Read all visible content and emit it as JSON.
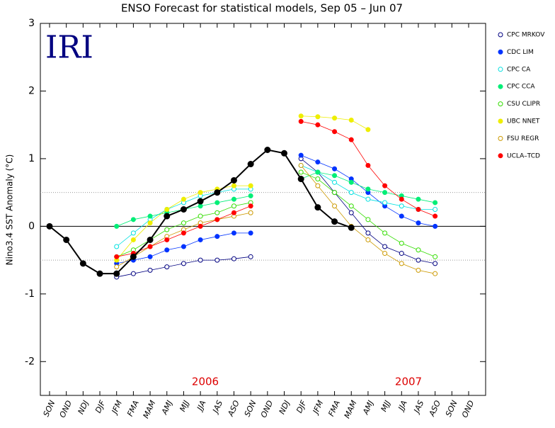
{
  "chart_data": {
    "type": "line",
    "title": "ENSO Forecast for statistical models, Sep 05 – Jun 07",
    "ylabel": "Nino3.4 SST Anomaly (°C)",
    "logo": "IRI",
    "annotations": [
      "2006",
      "2007"
    ],
    "categories": [
      "SON",
      "OND",
      "NDJ",
      "DJF",
      "JFM",
      "FMA",
      "MAM",
      "AMJ",
      "MJJ",
      "JJA",
      "JAS",
      "ASO",
      "SON",
      "OND",
      "NDJ",
      "DJF",
      "JFM",
      "FMA",
      "MAM",
      "AMJ",
      "MJJ",
      "JJA",
      "JAS",
      "ASO",
      "SON",
      "OND"
    ],
    "ylim": [
      -2.5,
      3
    ],
    "yticks": [
      -2,
      -1,
      0,
      1,
      2,
      3
    ],
    "reference_lines": [
      -0.5,
      0.5
    ],
    "observed": {
      "color": "#000000",
      "values": [
        0,
        -0.2,
        -0.55,
        -0.7,
        -0.7,
        -0.45,
        -0.2,
        0.15,
        0.25,
        0.37,
        0.5,
        0.68,
        0.92,
        1.13,
        1.08,
        0.7,
        0.28,
        0.07,
        -0.02,
        null,
        null,
        null,
        null,
        null,
        null,
        null
      ]
    },
    "series": [
      {
        "name": "CPC MRKOV",
        "color": "#000080",
        "filled": false,
        "runs": [
          [
            null,
            null,
            null,
            null,
            -0.75,
            -0.7,
            -0.65,
            -0.6,
            -0.55,
            -0.5,
            -0.5,
            -0.48,
            -0.45,
            null,
            null,
            null,
            null,
            null,
            null,
            null,
            null,
            null,
            null,
            null,
            null,
            null
          ],
          [
            null,
            null,
            null,
            null,
            null,
            null,
            null,
            null,
            null,
            null,
            null,
            null,
            null,
            null,
            null,
            1.0,
            0.8,
            0.5,
            0.2,
            -0.1,
            -0.3,
            -0.4,
            -0.5,
            -0.55,
            null,
            null
          ]
        ]
      },
      {
        "name": "CDC LIM",
        "color": "#0033ff",
        "filled": true,
        "runs": [
          [
            null,
            null,
            null,
            null,
            -0.55,
            -0.5,
            -0.45,
            -0.35,
            -0.3,
            -0.2,
            -0.15,
            -0.1,
            -0.1,
            null,
            null,
            null,
            null,
            null,
            null,
            null,
            null,
            null,
            null,
            null,
            null,
            null
          ],
          [
            null,
            null,
            null,
            null,
            null,
            null,
            null,
            null,
            null,
            null,
            null,
            null,
            null,
            null,
            null,
            1.05,
            0.95,
            0.85,
            0.7,
            0.5,
            0.3,
            0.15,
            0.05,
            0,
            null,
            null
          ]
        ]
      },
      {
        "name": "CPC CA",
        "color": "#00e0e0",
        "filled": false,
        "runs": [
          [
            null,
            null,
            null,
            null,
            -0.3,
            -0.1,
            0.1,
            0.25,
            0.35,
            0.45,
            0.5,
            0.55,
            0.55,
            null,
            null,
            null,
            null,
            null,
            null,
            null,
            null,
            null,
            null,
            null,
            null,
            null
          ],
          [
            null,
            null,
            null,
            null,
            null,
            null,
            null,
            null,
            null,
            null,
            null,
            null,
            null,
            null,
            null,
            0.9,
            0.8,
            0.65,
            0.5,
            0.4,
            0.35,
            0.3,
            0.25,
            0.25,
            null,
            null
          ]
        ]
      },
      {
        "name": "CPC CCA",
        "color": "#00ee77",
        "filled": true,
        "runs": [
          [
            null,
            null,
            null,
            null,
            0,
            0.1,
            0.15,
            0.2,
            0.25,
            0.3,
            0.35,
            0.4,
            0.45,
            null,
            null,
            null,
            null,
            null,
            null,
            null,
            null,
            null,
            null,
            null,
            null,
            null
          ],
          [
            null,
            null,
            null,
            null,
            null,
            null,
            null,
            null,
            null,
            null,
            null,
            null,
            null,
            null,
            null,
            0.7,
            0.8,
            0.75,
            0.65,
            0.55,
            0.5,
            0.45,
            0.4,
            0.35,
            null,
            null
          ]
        ]
      },
      {
        "name": "CSU CLIPR",
        "color": "#33dd00",
        "filled": false,
        "runs": [
          [
            null,
            null,
            null,
            null,
            -0.45,
            -0.35,
            -0.2,
            -0.05,
            0.05,
            0.15,
            0.2,
            0.3,
            0.35,
            null,
            null,
            null,
            null,
            null,
            null,
            null,
            null,
            null,
            null,
            null,
            null,
            null
          ],
          [
            null,
            null,
            null,
            null,
            null,
            null,
            null,
            null,
            null,
            null,
            null,
            null,
            null,
            null,
            null,
            0.8,
            0.7,
            0.5,
            0.3,
            0.1,
            -0.1,
            -0.25,
            -0.35,
            -0.45,
            null,
            null
          ]
        ]
      },
      {
        "name": "UBC NNET",
        "color": "#eeee00",
        "filled": true,
        "runs": [
          [
            null,
            null,
            null,
            null,
            -0.5,
            -0.2,
            0.05,
            0.25,
            0.4,
            0.5,
            0.55,
            0.6,
            0.6,
            null,
            null,
            null,
            null,
            null,
            null,
            null,
            null,
            null,
            null,
            null,
            null,
            null
          ],
          [
            null,
            null,
            null,
            null,
            null,
            null,
            null,
            null,
            null,
            null,
            null,
            null,
            null,
            null,
            null,
            1.63,
            1.62,
            1.6,
            1.57,
            1.43,
            null,
            null,
            null,
            null,
            null,
            null
          ]
        ]
      },
      {
        "name": "FSU REGR",
        "color": "#cc9900",
        "filled": false,
        "runs": [
          [
            null,
            null,
            null,
            null,
            -0.6,
            -0.45,
            -0.3,
            -0.15,
            -0.05,
            0.05,
            0.1,
            0.15,
            0.2,
            null,
            null,
            null,
            null,
            null,
            null,
            null,
            null,
            null,
            null,
            null,
            null,
            null
          ],
          [
            null,
            null,
            null,
            null,
            null,
            null,
            null,
            null,
            null,
            null,
            null,
            null,
            null,
            null,
            null,
            0.9,
            0.6,
            0.3,
            0,
            -0.2,
            -0.4,
            -0.55,
            -0.65,
            -0.7,
            null,
            null
          ]
        ]
      },
      {
        "name": "UCLA–TCD",
        "color": "#ff0000",
        "filled": true,
        "runs": [
          [
            null,
            null,
            null,
            null,
            -0.45,
            -0.4,
            -0.3,
            -0.2,
            -0.1,
            0,
            0.1,
            0.2,
            0.3,
            null,
            null,
            null,
            null,
            null,
            null,
            null,
            null,
            null,
            null,
            null,
            null,
            null
          ],
          [
            null,
            null,
            null,
            null,
            null,
            null,
            null,
            null,
            null,
            null,
            null,
            null,
            null,
            null,
            null,
            1.55,
            1.5,
            1.4,
            1.28,
            0.9,
            0.6,
            0.4,
            0.25,
            0.15,
            null,
            null
          ]
        ]
      }
    ]
  }
}
